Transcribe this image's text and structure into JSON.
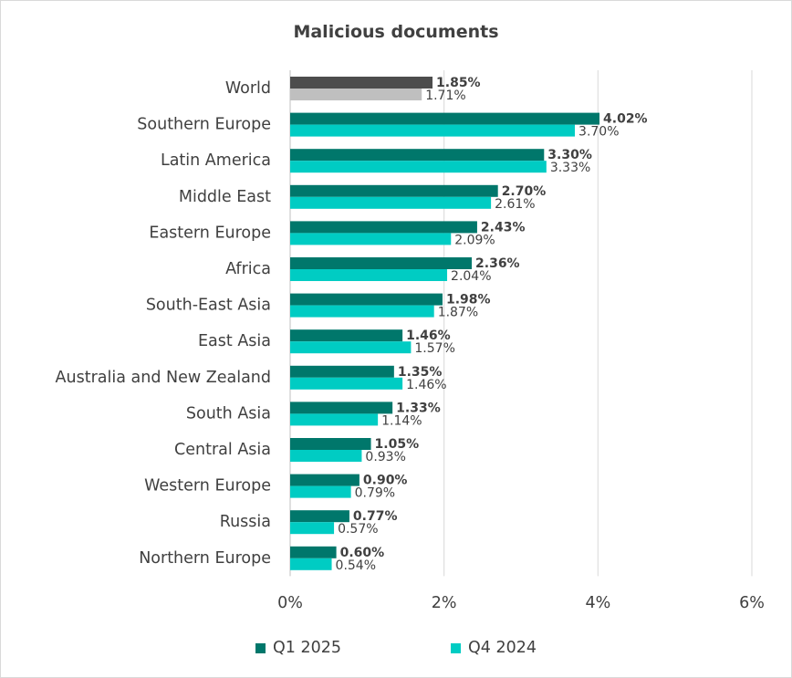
{
  "chart_data": {
    "type": "bar",
    "orientation": "horizontal",
    "title": "Malicious documents",
    "categories": [
      "World",
      "Southern Europe",
      "Latin America",
      "Middle East",
      "Eastern Europe",
      "Africa",
      "South-East Asia",
      "East Asia",
      "Australia and New Zealand",
      "South Asia",
      "Central Asia",
      "Western Europe",
      "Russia",
      "Northern Europe"
    ],
    "series": [
      {
        "name": "Q1 2025",
        "color": "#00776b",
        "highlight_color": "#4d4d4d",
        "values": [
          1.85,
          4.02,
          3.3,
          2.7,
          2.43,
          2.36,
          1.98,
          1.46,
          1.35,
          1.33,
          1.05,
          0.9,
          0.77,
          0.6
        ],
        "labels": [
          "1.85%",
          "4.02%",
          "3.30%",
          "2.70%",
          "2.43%",
          "2.36%",
          "1.98%",
          "1.46%",
          "1.35%",
          "1.33%",
          "1.05%",
          "0.90%",
          "0.77%",
          "0.60%"
        ]
      },
      {
        "name": "Q4 2024",
        "color": "#00ccc3",
        "highlight_color": "#bfbfbf",
        "values": [
          1.71,
          3.7,
          3.33,
          2.61,
          2.09,
          2.04,
          1.87,
          1.57,
          1.46,
          1.14,
          0.93,
          0.79,
          0.57,
          0.54
        ],
        "labels": [
          "1.71%",
          "3.70%",
          "3.33%",
          "2.61%",
          "2.09%",
          "2.04%",
          "1.87%",
          "1.57%",
          "1.46%",
          "1.14%",
          "0.93%",
          "0.79%",
          "0.57%",
          "0.54%"
        ]
      }
    ],
    "xlim": [
      0,
      6
    ],
    "xticks": [
      "0%",
      "2%",
      "4%",
      "6%"
    ],
    "grid": "vertical",
    "legend_position": "bottom"
  }
}
